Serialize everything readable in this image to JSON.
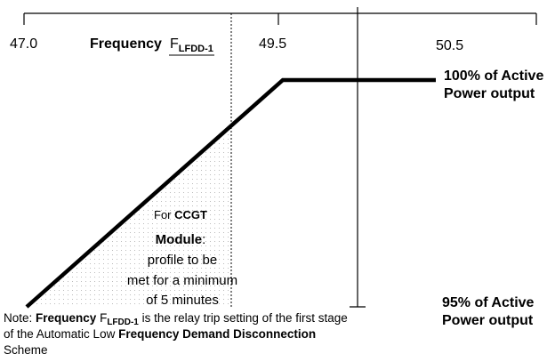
{
  "axis": {
    "ticks": [
      "47.0",
      "49.5",
      "50.5"
    ],
    "label": "Frequency",
    "marker": {
      "symbol": "F",
      "subscript": "LFDD-1"
    }
  },
  "levels": [
    [
      "100% of Active",
      "Power output"
    ],
    [
      "95% of Active",
      "Power output"
    ]
  ],
  "annotation": {
    "lines": [
      [
        "For ",
        "CCGT"
      ],
      [
        "Module",
        ":"
      ],
      [
        "profile to be"
      ],
      [
        "met for a minimum"
      ],
      [
        "of 5 minutes"
      ]
    ]
  },
  "note": {
    "lines": [
      [
        "Note: ",
        "Frequency",
        " F",
        "LFDD-1",
        " is the relay trip setting of the first stage"
      ],
      [
        "of the Automatic Low ",
        "Frequency Demand Disconnection"
      ],
      [
        "Scheme"
      ]
    ]
  }
}
